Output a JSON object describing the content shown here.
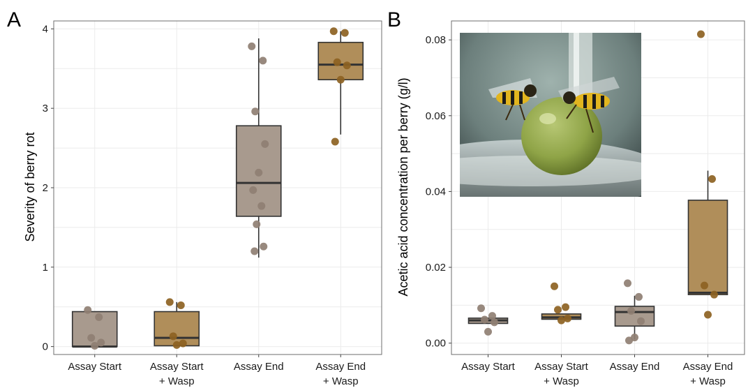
{
  "chart_data": [
    {
      "type": "box",
      "panel_label": "A",
      "ylabel": "Severity of berry rot",
      "xlabel": "",
      "ylim": [
        -0.1,
        4.1
      ],
      "yticks": [
        0,
        1,
        2,
        3,
        4
      ],
      "grid": true,
      "categories": [
        "Assay Start",
        "Assay Start\n+ Wasp",
        "Assay End",
        "Assay End\n+ Wasp"
      ],
      "boxes": [
        {
          "q1": 0,
          "median": 0,
          "q3": 0.44,
          "whisker_low": 0,
          "whisker_high": 0.44,
          "color": "#a89a8e",
          "points": [
            0.46,
            0.37,
            0.11,
            0.05,
            0.01
          ]
        },
        {
          "q1": 0.01,
          "median": 0.11,
          "q3": 0.44,
          "whisker_low": 0.01,
          "whisker_high": 0.56,
          "color": "#b08e5a",
          "points": [
            0.56,
            0.52,
            0.13,
            0.04,
            0.02
          ]
        },
        {
          "q1": 1.64,
          "median": 2.06,
          "q3": 2.78,
          "whisker_low": 1.12,
          "whisker_high": 3.88,
          "color": "#a89a8e",
          "points": [
            3.78,
            3.6,
            2.96,
            2.55,
            2.19,
            1.97,
            1.77,
            1.54,
            1.26,
            1.2
          ]
        },
        {
          "q1": 3.36,
          "median": 3.55,
          "q3": 3.83,
          "whisker_low": 2.67,
          "whisker_high": 3.97,
          "color": "#b08e5a",
          "points": [
            3.97,
            3.95,
            3.58,
            3.54,
            3.36,
            2.58
          ]
        }
      ]
    },
    {
      "type": "box",
      "panel_label": "B",
      "ylabel": "Acetic acid concentration per berry (g/l)",
      "xlabel": "",
      "ylim": [
        -0.003,
        0.085
      ],
      "yticks": [
        "0.00",
        "0.02",
        "0.04",
        "0.06",
        "0.08"
      ],
      "grid": true,
      "inset_image": "wasps-on-grape-photo",
      "categories": [
        "Assay Start",
        "Assay Start\n+ Wasp",
        "Assay End",
        "Assay End\n+ Wasp"
      ],
      "boxes": [
        {
          "q1": 0.0052,
          "median": 0.006,
          "q3": 0.0066,
          "whisker_low": 0.0052,
          "whisker_high": 0.0066,
          "color": "#a89a8e",
          "points": [
            0.0092,
            0.0072,
            0.0062,
            0.0055,
            0.003
          ]
        },
        {
          "q1": 0.0063,
          "median": 0.0068,
          "q3": 0.0077,
          "whisker_low": 0.0063,
          "whisker_high": 0.0077,
          "color": "#b08e5a",
          "points": [
            0.015,
            0.0095,
            0.0088,
            0.0065,
            0.006
          ]
        },
        {
          "q1": 0.0045,
          "median": 0.0082,
          "q3": 0.0097,
          "whisker_low": 0.001,
          "whisker_high": 0.0125,
          "color": "#a89a8e",
          "points": [
            0.0158,
            0.0122,
            0.0085,
            0.0058,
            0.0015,
            0.0007
          ]
        },
        {
          "q1": 0.0128,
          "median": 0.0133,
          "q3": 0.0377,
          "whisker_low": 0.0128,
          "whisker_high": 0.0455,
          "color": "#b08e5a",
          "points": [
            0.0815,
            0.0433,
            0.0152,
            0.0128,
            0.0075
          ]
        }
      ]
    }
  ]
}
